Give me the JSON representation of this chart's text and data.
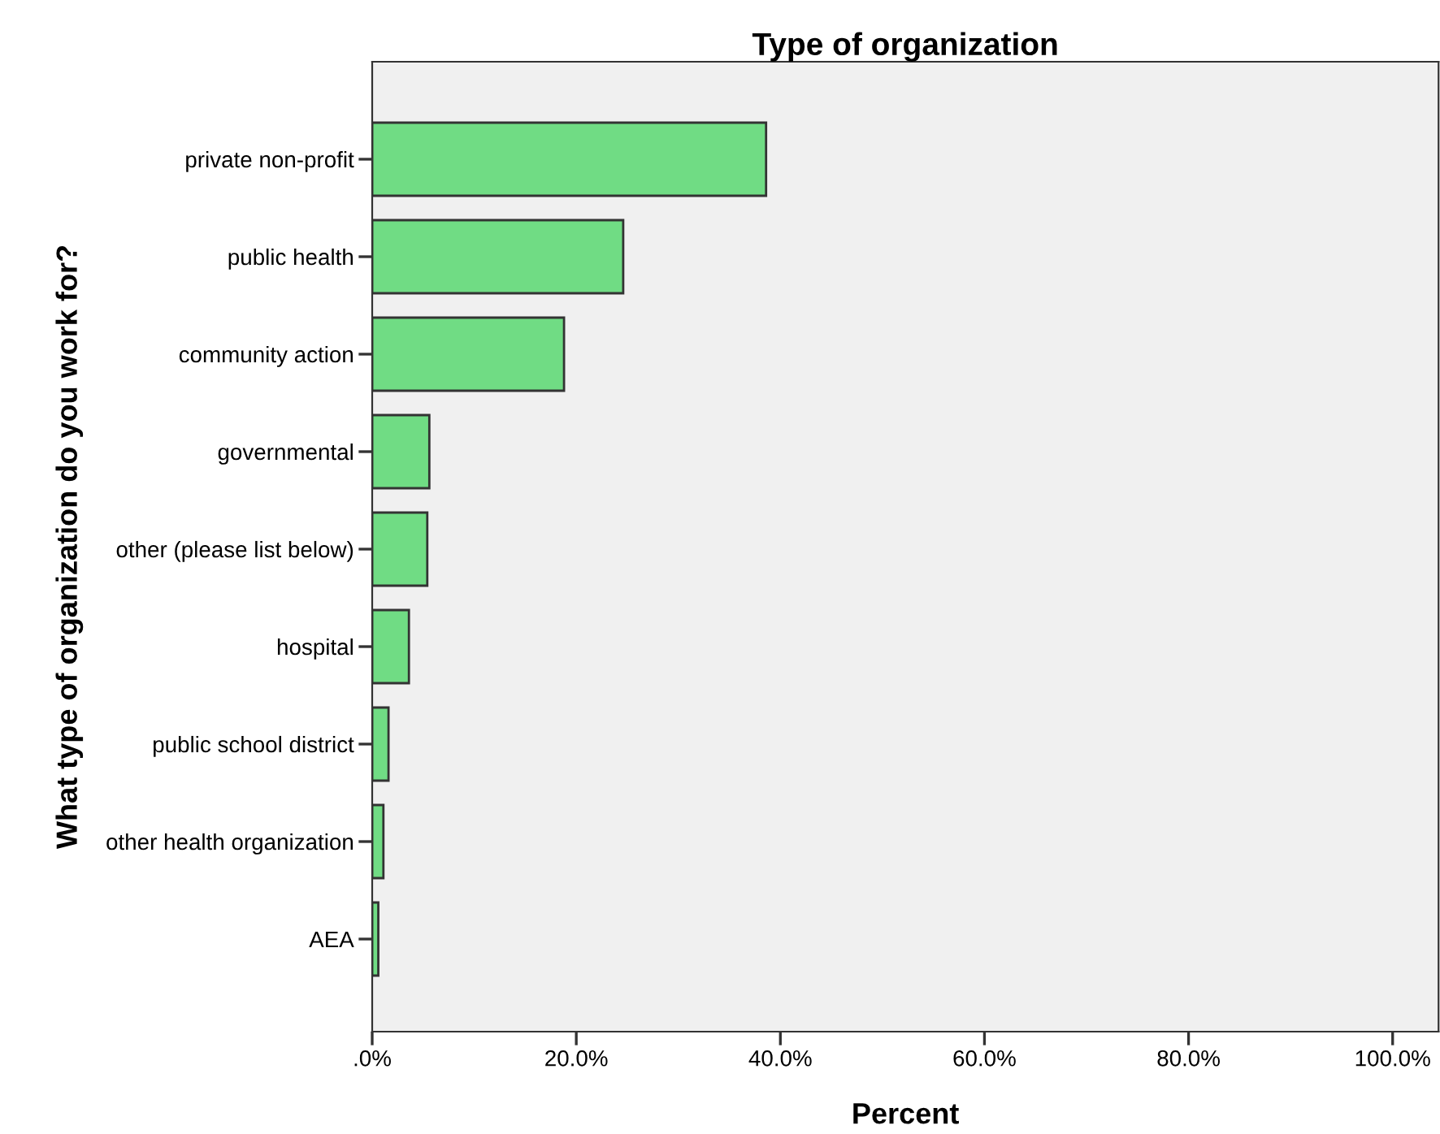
{
  "chart_data": {
    "type": "bar",
    "orientation": "horizontal",
    "title": "Type of organization",
    "xlabel": "Percent",
    "ylabel": "What type of organization do you work for?",
    "categories": [
      "private non-profit",
      "public health",
      "community action",
      "governmental",
      "other (please list below)",
      "hospital",
      "public school district",
      "other health organization",
      "AEA"
    ],
    "values": [
      38.6,
      24.6,
      18.8,
      5.6,
      5.4,
      3.6,
      1.6,
      1.1,
      0.6
    ],
    "color": "#70dc84",
    "xlim": [
      0,
      104.5
    ],
    "xticks": [
      {
        "value": 0,
        "label": ".0%"
      },
      {
        "value": 20,
        "label": "20.0%"
      },
      {
        "value": 40,
        "label": "40.0%"
      },
      {
        "value": 60,
        "label": "60.0%"
      },
      {
        "value": 80,
        "label": "80.0%"
      },
      {
        "value": 100,
        "label": "100.0%"
      }
    ],
    "grid": false,
    "legend": false
  }
}
